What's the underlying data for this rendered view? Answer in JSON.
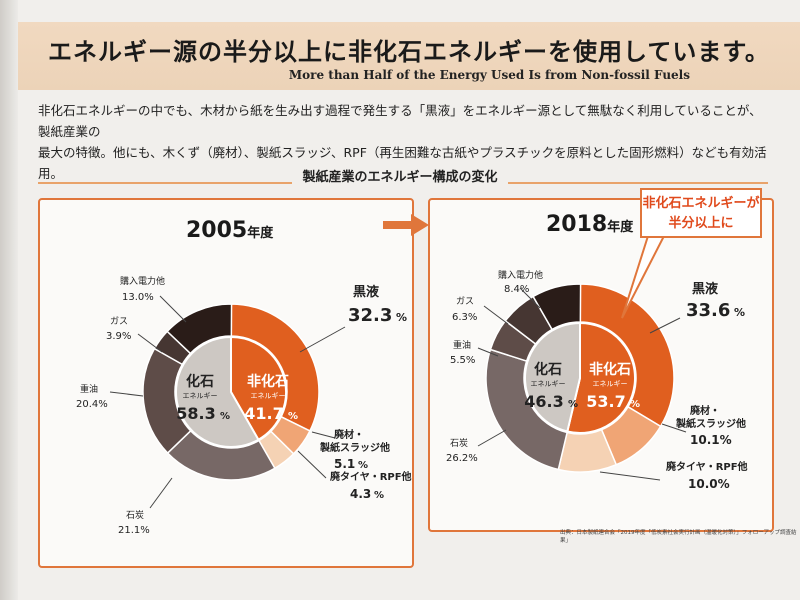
{
  "header": {
    "title": "エネルギー源の半分以上に非化石エネルギーを使用しています。",
    "subtitle": "More than Half of the Energy Used Is from Non-fossil Fuels"
  },
  "intro": {
    "line1": "非化石エネルギーの中でも、木材から紙を生み出す過程で発生する「黒液」をエネルギー源として無駄なく利用していることが、製紙産業の",
    "line2": "最大の特徴。他にも、木くず（廃材）、製紙スラッジ、RPF（再生困難な古紙やプラスチックを原料とした固形燃料）なども有効活用。"
  },
  "section_title": "製紙産業のエネルギー構成の変化",
  "callout": {
    "line1": "非化石エネルギーが",
    "line2": "半分以上に"
  },
  "source_note": "出典：日本製紙連合会「2019年度「低炭素社会実行計画（温暖化対策）」フォローアップ調査結果」",
  "colors": {
    "accent": "#e0763b",
    "kokueki": "#e05f1f",
    "haizai": "#f0a575",
    "haitaiya": "#f5d2b4",
    "sekitan": "#776866",
    "juyu": "#5e4c48",
    "gas": "#463632",
    "denryoku": "#2a1c18",
    "fossil_inner": "#cdc8c3",
    "nonfossil_inner": "#e05f1f"
  },
  "chart_data": [
    {
      "type": "pie",
      "year_num": "2005",
      "year_suffix": "年度",
      "inner": {
        "fossil": {
          "name": "化石",
          "sub": "エネルギー",
          "value": 58.3,
          "label": "58.3",
          "unit": "%"
        },
        "nonfossil": {
          "name": "非化石",
          "sub": "エネルギー",
          "value": 41.7,
          "label": "41.7",
          "unit": "%"
        }
      },
      "slices": [
        {
          "key": "kokueki",
          "name": "黒液",
          "value": 32.3,
          "label": "32.3",
          "unit": "%"
        },
        {
          "key": "haizai",
          "name": "廃材・",
          "name2": "製紙スラッジ他",
          "value": 5.1,
          "label": "5.1",
          "unit": "%"
        },
        {
          "key": "haitaiya",
          "name": "廃タイヤ・RPF他",
          "value": 4.3,
          "label": "4.3",
          "unit": "%"
        },
        {
          "key": "sekitan",
          "name": "石炭",
          "value": 21.1,
          "label": "21.1%"
        },
        {
          "key": "juyu",
          "name": "重油",
          "value": 20.4,
          "label": "20.4%"
        },
        {
          "key": "gas",
          "name": "ガス",
          "value": 3.9,
          "label": "3.9%"
        },
        {
          "key": "denryoku",
          "name": "購入電力他",
          "value": 13.0,
          "label": "13.0%"
        }
      ]
    },
    {
      "type": "pie",
      "year_num": "2018",
      "year_suffix": "年度",
      "inner": {
        "fossil": {
          "name": "化石",
          "sub": "エネルギー",
          "value": 46.3,
          "label": "46.3",
          "unit": "%"
        },
        "nonfossil": {
          "name": "非化石",
          "sub": "エネルギー",
          "value": 53.7,
          "label": "53.7",
          "unit": "%"
        }
      },
      "slices": [
        {
          "key": "kokueki",
          "name": "黒液",
          "value": 33.6,
          "label": "33.6",
          "unit": "%"
        },
        {
          "key": "haizai",
          "name": "廃材・",
          "name2": "製紙スラッジ他",
          "value": 10.1,
          "label": "10.1%"
        },
        {
          "key": "haitaiya",
          "name": "廃タイヤ・RPF他",
          "value": 10.0,
          "label": "10.0%"
        },
        {
          "key": "sekitan",
          "name": "石炭",
          "value": 26.2,
          "label": "26.2%"
        },
        {
          "key": "juyu",
          "name": "重油",
          "value": 5.5,
          "label": "5.5%"
        },
        {
          "key": "gas",
          "name": "ガス",
          "value": 6.3,
          "label": "6.3%"
        },
        {
          "key": "denryoku",
          "name": "購入電力他",
          "value": 8.4,
          "label": "8.4%"
        }
      ]
    }
  ]
}
